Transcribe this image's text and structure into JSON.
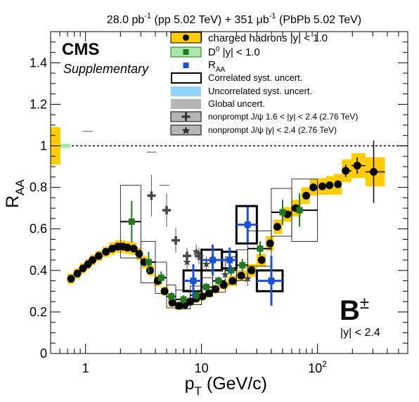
{
  "header": {
    "lumi_pp": "28.0 pb",
    "lumi_pp_exp": "-1",
    "lumi_pp_rest": " (pp 5.02 TeV) + 351 ",
    "lumi_pbpb_unit": "μb",
    "lumi_pbpb_exp": "-1",
    "lumi_pbpb_rest": " (PbPb 5.02 TeV)"
  },
  "labels": {
    "experiment": "CMS",
    "status": "Supplementary",
    "particle": "B",
    "particle_sup": "±",
    "rapidity": "|y| < 2.4"
  },
  "legend": {
    "items": [
      {
        "label": "charged hadrons |y| < 1.0",
        "style": "yellow-box-black-dot"
      },
      {
        "label": "D",
        "sup": "0",
        "rest": " |y| < 1.0",
        "style": "green-box-green-square"
      },
      {
        "label": "R",
        "sub": "AA",
        "style": "blue-square"
      },
      {
        "label": "Correlated syst. uncert.",
        "style": "open-box"
      },
      {
        "label": "Uncorrelated syst. uncert.",
        "style": "lightblue-box"
      },
      {
        "label": "Global uncert.",
        "style": "gray-box"
      },
      {
        "label": "nonprompt J/ψ 1.6 < |y| < 2.4 (2.76 TeV)",
        "style": "gray-box-cross"
      },
      {
        "label": "nonprompt J/ψ |y| < 2.4 (2.76 TeV)",
        "style": "gray-box-star"
      }
    ]
  },
  "chart_data": {
    "type": "scatter",
    "xlabel": "p",
    "xlabel_sub": "T",
    "xlabel_rest": " (GeV/c)",
    "ylabel": "R",
    "ylabel_sub": "AA",
    "x_scale": "log",
    "xlim": [
      0.5,
      600
    ],
    "ylim": [
      0,
      1.55
    ],
    "x_ticks": [
      {
        "v": 1,
        "label": "1"
      },
      {
        "v": 10,
        "label": "10"
      },
      {
        "v": 100,
        "label": "10",
        "sup": "2"
      }
    ],
    "y_ticks": [
      0,
      0.2,
      0.4,
      0.6,
      0.8,
      1,
      1.2,
      1.4
    ],
    "y_tick_labels": [
      "0",
      "0.2",
      "0.4",
      "0.6",
      "0.8",
      "1",
      "1.2",
      "1.4"
    ],
    "reference_line": 1.0,
    "colors": {
      "charged": "#000000",
      "charged_syst": "#ffcc00",
      "d0": "#1f7a1f",
      "b": "#1a4fd6",
      "jpsi": "#555555",
      "uncorr": "#8fd3ff",
      "global": "#b5b5b5",
      "d0_global": "#a6e6a6"
    },
    "global_boxes": [
      {
        "name": "charged hadrons",
        "y": 1.0,
        "lo": 0.91,
        "hi": 1.09
      },
      {
        "name": "D0",
        "y": 1.0,
        "lo": 0.99,
        "hi": 1.01
      }
    ],
    "series": [
      {
        "name": "charged hadrons |y| < 1.0",
        "points": [
          {
            "x": 0.75,
            "y": 0.36,
            "sy": 0.025
          },
          {
            "x": 0.85,
            "y": 0.385,
            "sy": 0.025
          },
          {
            "x": 0.95,
            "y": 0.41,
            "sy": 0.025
          },
          {
            "x": 1.05,
            "y": 0.43,
            "sy": 0.025
          },
          {
            "x": 1.15,
            "y": 0.45,
            "sy": 0.025
          },
          {
            "x": 1.3,
            "y": 0.47,
            "sy": 0.025
          },
          {
            "x": 1.5,
            "y": 0.49,
            "sy": 0.025
          },
          {
            "x": 1.7,
            "y": 0.505,
            "sy": 0.03
          },
          {
            "x": 1.9,
            "y": 0.515,
            "sy": 0.03
          },
          {
            "x": 2.1,
            "y": 0.515,
            "sy": 0.03
          },
          {
            "x": 2.3,
            "y": 0.51,
            "sy": 0.03
          },
          {
            "x": 2.6,
            "y": 0.505,
            "sy": 0.03
          },
          {
            "x": 2.9,
            "y": 0.48,
            "sy": 0.03
          },
          {
            "x": 3.2,
            "y": 0.44,
            "sy": 0.03
          },
          {
            "x": 3.6,
            "y": 0.4,
            "sy": 0.025
          },
          {
            "x": 4.2,
            "y": 0.35,
            "sy": 0.025
          },
          {
            "x": 4.8,
            "y": 0.3,
            "sy": 0.02
          },
          {
            "x": 5.6,
            "y": 0.245,
            "sy": 0.02
          },
          {
            "x": 6.4,
            "y": 0.23,
            "sy": 0.02
          },
          {
            "x": 7.2,
            "y": 0.235,
            "sy": 0.02
          },
          {
            "x": 8.0,
            "y": 0.25,
            "sy": 0.02
          },
          {
            "x": 9.0,
            "y": 0.265,
            "sy": 0.02
          },
          {
            "x": 10.2,
            "y": 0.275,
            "sy": 0.02
          },
          {
            "x": 11.6,
            "y": 0.29,
            "sy": 0.02
          },
          {
            "x": 13.2,
            "y": 0.31,
            "sy": 0.02
          },
          {
            "x": 15.5,
            "y": 0.33,
            "sy": 0.02
          },
          {
            "x": 18.5,
            "y": 0.35,
            "sy": 0.025
          },
          {
            "x": 22,
            "y": 0.375,
            "sy": 0.025
          },
          {
            "x": 27,
            "y": 0.4,
            "sy": 0.03
          },
          {
            "x": 33,
            "y": 0.45,
            "sy": 0.03
          },
          {
            "x": 39,
            "y": 0.53,
            "sy": 0.035
          },
          {
            "x": 45,
            "y": 0.61,
            "sy": 0.035
          },
          {
            "x": 55,
            "y": 0.67,
            "sy": 0.035
          },
          {
            "x": 65,
            "y": 0.7,
            "sy": 0.04
          },
          {
            "x": 80,
            "y": 0.76,
            "sy": 0.04
          },
          {
            "x": 92,
            "y": 0.8,
            "sy": 0.04
          },
          {
            "x": 110,
            "y": 0.805,
            "sy": 0.04
          },
          {
            "x": 127,
            "y": 0.81,
            "sy": 0.045
          },
          {
            "x": 150,
            "y": 0.815,
            "sy": 0.05
          },
          {
            "x": 175,
            "y": 0.88,
            "sy": 0.055,
            "ey": 0.03
          },
          {
            "x": 220,
            "y": 0.905,
            "sy": 0.06,
            "ey": 0.04
          },
          {
            "x": 305,
            "y": 0.875,
            "sy": 0.07,
            "ey": 0.15
          }
        ]
      },
      {
        "name": "D0 |y| < 1.0",
        "points": [
          {
            "x": 2.5,
            "y": 0.635,
            "xlo": 2,
            "xhi": 3,
            "ey": 0.1,
            "sy": 0.175
          },
          {
            "x": 3.5,
            "y": 0.44,
            "xlo": 3,
            "xhi": 4,
            "ey": 0.05,
            "sy": 0.1
          },
          {
            "x": 4.5,
            "y": 0.365,
            "xlo": 4,
            "xhi": 5,
            "ey": 0.03,
            "sy": 0.075
          },
          {
            "x": 5.5,
            "y": 0.275,
            "xlo": 5,
            "xhi": 6,
            "ey": 0.02,
            "sy": 0.055
          },
          {
            "x": 7,
            "y": 0.26,
            "xlo": 6,
            "xhi": 8,
            "ey": 0.02,
            "sy": 0.045
          },
          {
            "x": 9,
            "y": 0.28,
            "xlo": 8,
            "xhi": 10,
            "ey": 0.02,
            "sy": 0.045
          },
          {
            "x": 11,
            "y": 0.32,
            "xlo": 10,
            "xhi": 12.5,
            "ey": 0.02,
            "sy": 0.045
          },
          {
            "x": 14,
            "y": 0.35,
            "xlo": 12.5,
            "xhi": 16,
            "ey": 0.02,
            "sy": 0.055
          },
          {
            "x": 18,
            "y": 0.4,
            "xlo": 16,
            "xhi": 20,
            "ey": 0.025,
            "sy": 0.065
          },
          {
            "x": 22.5,
            "y": 0.425,
            "xlo": 20,
            "xhi": 25,
            "ey": 0.03,
            "sy": 0.075
          },
          {
            "x": 32,
            "y": 0.505,
            "xlo": 25,
            "xhi": 40,
            "ey": 0.035,
            "sy": 0.085
          },
          {
            "x": 50,
            "y": 0.68,
            "xlo": 40,
            "xhi": 60,
            "ey": 0.06,
            "sy": 0.115
          },
          {
            "x": 70,
            "y": 0.69,
            "xlo": 60,
            "xhi": 100,
            "ey": 0.08,
            "sy": 0.15
          }
        ]
      },
      {
        "name": "R_AA",
        "points": [
          {
            "x": 8.5,
            "y": 0.35,
            "xlo": 7,
            "xhi": 10,
            "ey": 0.08,
            "sy": 0.05,
            "uy": 0.02
          },
          {
            "x": 12.5,
            "y": 0.45,
            "xlo": 10,
            "xhi": 15,
            "ey": 0.075,
            "sy": 0.05,
            "uy": 0.02
          },
          {
            "x": 17.5,
            "y": 0.45,
            "xlo": 15,
            "xhi": 20,
            "ey": 0.06,
            "sy": 0.04,
            "uy": 0.015
          },
          {
            "x": 25,
            "y": 0.62,
            "xlo": 20,
            "xhi": 30,
            "ey": 0.085,
            "sy": 0.09,
            "uy": 0.02
          },
          {
            "x": 40,
            "y": 0.35,
            "xlo": 30,
            "xhi": 50,
            "ey": 0.12,
            "sy": 0.05,
            "uy": 0.02
          }
        ]
      },
      {
        "name": "nonprompt J/psi 1.6 < |y| < 2.4 (2.76 TeV)",
        "points": [
          {
            "x": 3.7,
            "y": 0.76,
            "xlo": 3,
            "xhi": 4.5,
            "ey": 0.1,
            "sy": 0.0
          },
          {
            "x": 5.0,
            "y": 0.69,
            "xlo": 4.5,
            "xhi": 5.5,
            "ey": 0.08,
            "sy": 0.0
          },
          {
            "x": 6.0,
            "y": 0.545,
            "xlo": 5.5,
            "xhi": 6.5,
            "ey": 0.06,
            "sy": 0.0
          },
          {
            "x": 7.5,
            "y": 0.47,
            "xlo": 6.5,
            "xhi": 8.5,
            "ey": 0.04,
            "sy": 0.0
          },
          {
            "x": 9.5,
            "y": 0.47,
            "xlo": 8.5,
            "xhi": 11,
            "ey": 0.04,
            "sy": 0.0
          }
        ]
      },
      {
        "name": "nonprompt J/psi |y| < 2.4 (2.76 TeV)",
        "points": [
          {
            "x": 7.5,
            "y": 0.44,
            "xlo": 6.5,
            "xhi": 8.5,
            "ey": 0.035,
            "sy": 0.0
          },
          {
            "x": 9.0,
            "y": 0.49,
            "xlo": 8.5,
            "xhi": 9.5,
            "ey": 0.035,
            "sy": 0.0
          },
          {
            "x": 11,
            "y": 0.43,
            "xlo": 9.5,
            "xhi": 13,
            "ey": 0.035,
            "sy": 0.0
          },
          {
            "x": 16,
            "y": 0.38,
            "xlo": 13,
            "xhi": 20,
            "ey": 0.03,
            "sy": 0.0
          },
          {
            "x": 25,
            "y": 0.36,
            "xlo": 20,
            "xhi": 30,
            "ey": 0.035,
            "sy": 0.0
          }
        ]
      }
    ],
    "jpsi_global": [
      {
        "x": 1.05,
        "y": 1.07
      },
      {
        "x": 3.7,
        "y": 0.97
      },
      {
        "x": 4.8,
        "y": 0.81
      }
    ]
  }
}
